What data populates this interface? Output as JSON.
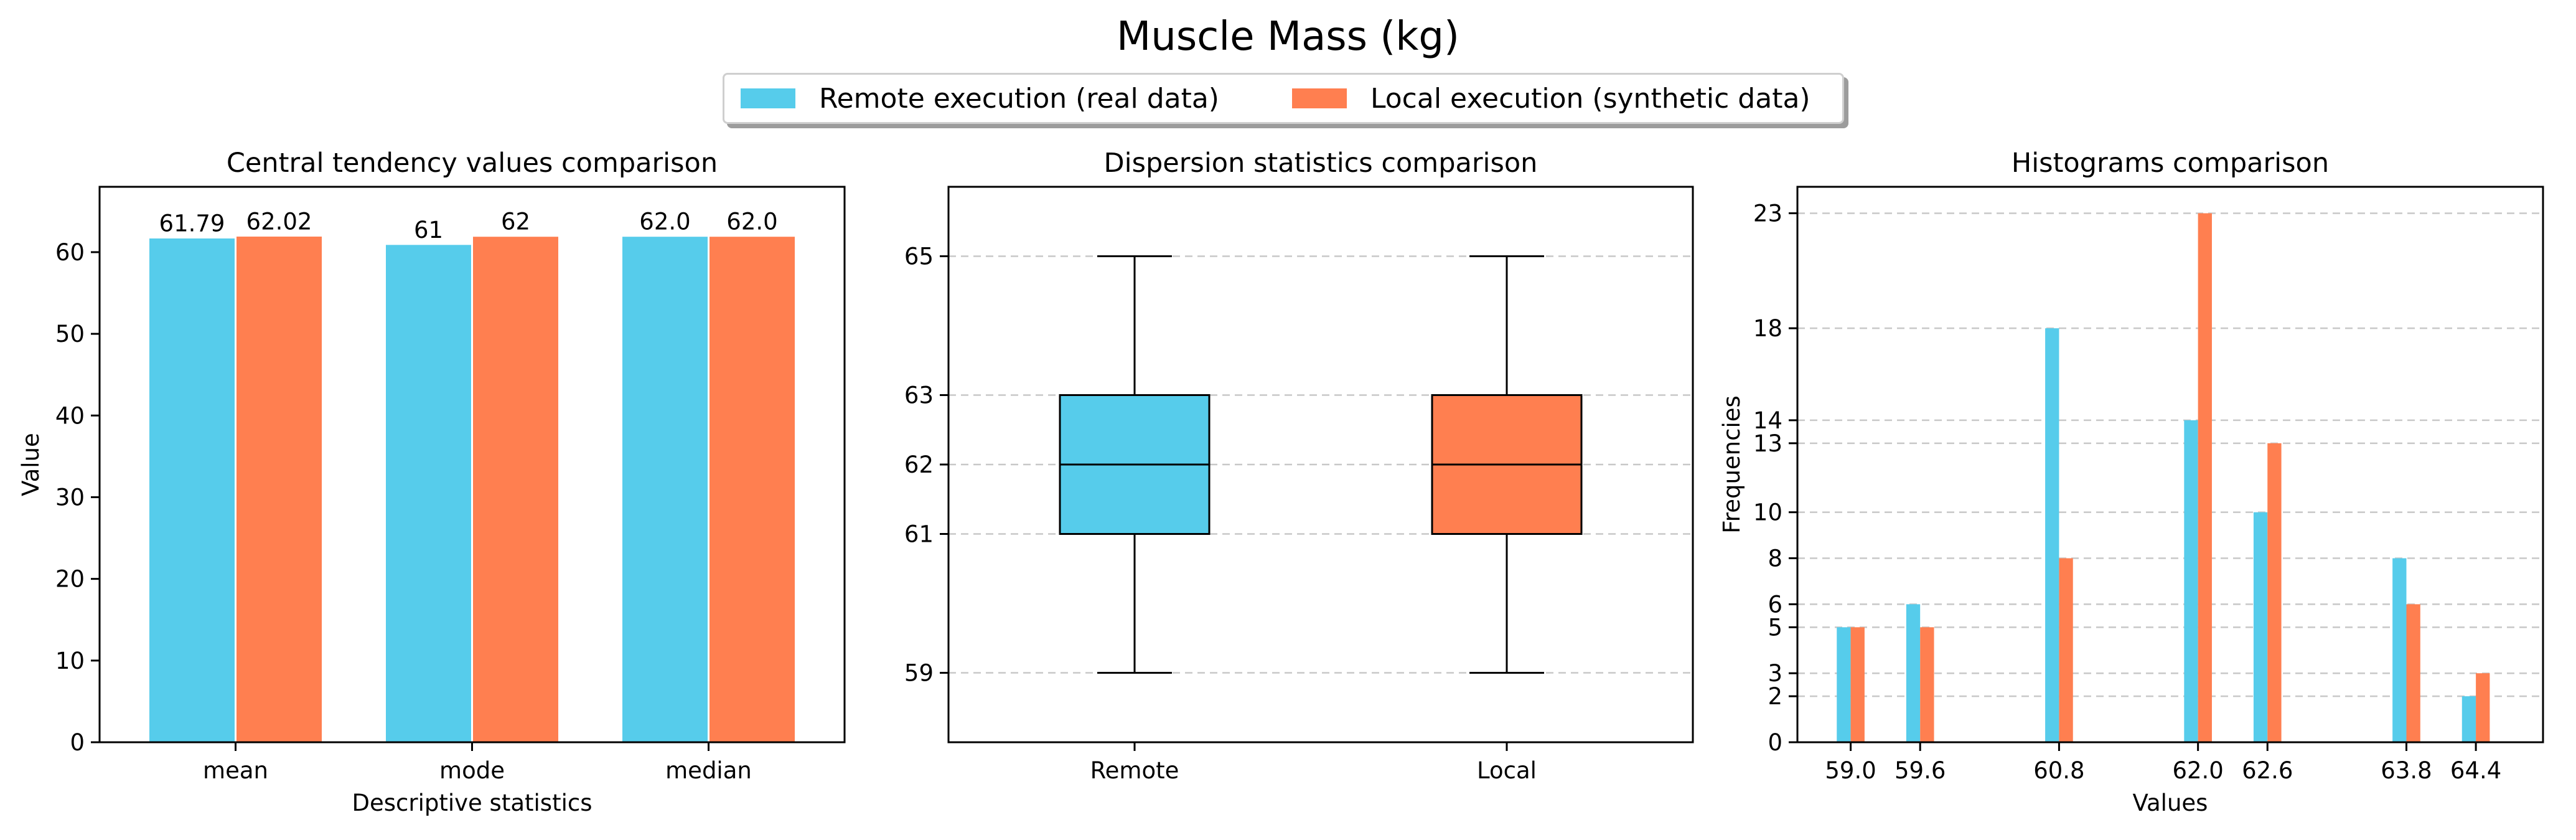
{
  "figure_title": "Muscle Mass (kg)",
  "legend": {
    "remote_label": "Remote execution (real data)",
    "local_label": "Local execution (synthetic data)"
  },
  "colors": {
    "remote": "#56CCEB",
    "local": "#FF7F50"
  },
  "chart_data": [
    {
      "type": "bar",
      "title": "Central tendency values comparison",
      "xlabel": "Descriptive statistics",
      "ylabel": "Value",
      "ylim": [
        0,
        68
      ],
      "yticks": [
        0,
        10,
        20,
        30,
        40,
        50,
        60
      ],
      "categories": [
        "mean",
        "mode",
        "median"
      ],
      "series": [
        {
          "name": "Remote execution (real data)",
          "values": [
            61.79,
            61,
            62.0
          ],
          "labels": [
            "61.79",
            "61",
            "62.0"
          ]
        },
        {
          "name": "Local execution (synthetic data)",
          "values": [
            62.02,
            62,
            62.0
          ],
          "labels": [
            "62.02",
            "62",
            "62.0"
          ]
        }
      ]
    },
    {
      "type": "box",
      "title": "Dispersion statistics comparison",
      "ylim": [
        58.0,
        66.0
      ],
      "yticks": [
        59,
        61,
        62,
        63,
        65
      ],
      "categories": [
        "Remote",
        "Local"
      ],
      "boxes": [
        {
          "name": "Remote",
          "whislo": 59,
          "q1": 61,
          "median": 62,
          "q3": 63,
          "whishi": 65
        },
        {
          "name": "Local",
          "whislo": 59,
          "q1": 61,
          "median": 62,
          "q3": 63,
          "whishi": 65
        }
      ]
    },
    {
      "type": "bar",
      "title": "Histograms comparison",
      "xlabel": "Values",
      "ylabel": "Frequencies",
      "ylim": [
        0,
        24.15
      ],
      "yticks": [
        0,
        2,
        3,
        5,
        6,
        8,
        10,
        13,
        14,
        18,
        23
      ],
      "x": [
        59.0,
        59.6,
        60.8,
        62.0,
        62.6,
        63.8,
        64.4
      ],
      "xtick_labels": [
        "59.0",
        "59.6",
        "60.8",
        "62.0",
        "62.6",
        "63.8",
        "64.4"
      ],
      "series": [
        {
          "name": "Remote execution (real data)",
          "values": [
            5,
            6,
            18,
            14,
            10,
            8,
            2
          ]
        },
        {
          "name": "Local execution (synthetic data)",
          "values": [
            5,
            5,
            8,
            23,
            13,
            6,
            3
          ]
        }
      ]
    }
  ]
}
